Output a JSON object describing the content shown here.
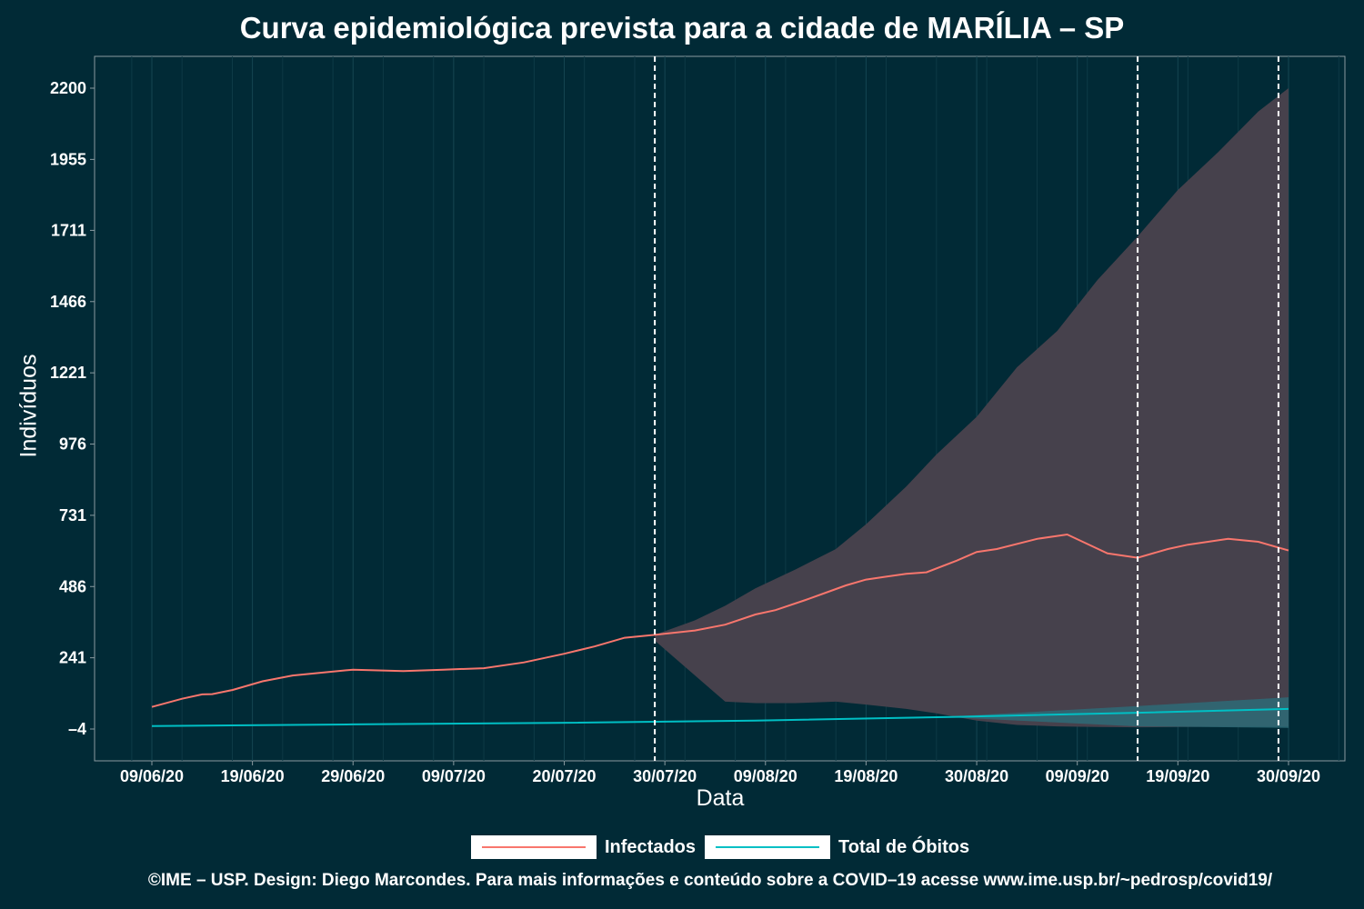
{
  "chart_data": {
    "type": "line",
    "title": "Curva epidemiológica prevista para a cidade de MARÍLIA – SP",
    "xlabel": "Data",
    "ylabel": "Indivíduos",
    "x_range": [
      "2020-06-09",
      "2020-09-30"
    ],
    "ylim": [
      -4,
      2200
    ],
    "x_ticks": [
      "09/06/20",
      "19/06/20",
      "29/06/20",
      "09/07/20",
      "20/07/20",
      "30/07/20",
      "09/08/20",
      "19/08/20",
      "30/08/20",
      "09/09/20",
      "19/09/20",
      "30/09/20"
    ],
    "y_ticks": [
      -4,
      241,
      486,
      731,
      976,
      1221,
      1466,
      1711,
      1955,
      2200
    ],
    "y_tick_labels": [
      "–4",
      "241",
      "486",
      "731",
      "976",
      "1221",
      "1466",
      "1711",
      "1955",
      "2200"
    ],
    "vertical_lines": [
      "2020-07-29",
      "2020-09-15",
      "2020-09-29"
    ],
    "grid": true,
    "legend_position": "bottom",
    "series": [
      {
        "name": "Infectados",
        "color": "#f8766d",
        "x": [
          "2020-06-09",
          "2020-06-12",
          "2020-06-14",
          "2020-06-15",
          "2020-06-17",
          "2020-06-20",
          "2020-06-23",
          "2020-06-26",
          "2020-06-29",
          "2020-07-04",
          "2020-07-08",
          "2020-07-12",
          "2020-07-16",
          "2020-07-20",
          "2020-07-23",
          "2020-07-26",
          "2020-07-29",
          "2020-08-02",
          "2020-08-05",
          "2020-08-08",
          "2020-08-10",
          "2020-08-13",
          "2020-08-15",
          "2020-08-17",
          "2020-08-19",
          "2020-08-21",
          "2020-08-23",
          "2020-08-25",
          "2020-08-28",
          "2020-08-30",
          "2020-09-01",
          "2020-09-05",
          "2020-09-08",
          "2020-09-12",
          "2020-09-15",
          "2020-09-18",
          "2020-09-20",
          "2020-09-24",
          "2020-09-27",
          "2020-09-30"
        ],
        "y": [
          72,
          100,
          115,
          116,
          130,
          160,
          180,
          190,
          200,
          195,
          200,
          205,
          225,
          255,
          280,
          310,
          320,
          335,
          355,
          390,
          405,
          440,
          465,
          490,
          510,
          520,
          530,
          535,
          575,
          605,
          615,
          650,
          665,
          600,
          585,
          615,
          630,
          650,
          640,
          610
        ]
      },
      {
        "name": "Total de Óbitos",
        "color": "#00bfc4",
        "x": [
          "2020-06-09",
          "2020-06-29",
          "2020-07-19",
          "2020-08-08",
          "2020-08-28",
          "2020-09-15",
          "2020-09-30"
        ],
        "y": [
          6,
          12,
          17,
          25,
          38,
          52,
          65
        ]
      }
    ],
    "confidence_bands": [
      {
        "series": "Infectados",
        "x": [
          "2020-07-29",
          "2020-08-02",
          "2020-08-05",
          "2020-08-08",
          "2020-08-12",
          "2020-08-16",
          "2020-08-19",
          "2020-08-23",
          "2020-08-26",
          "2020-08-30",
          "2020-09-03",
          "2020-09-07",
          "2020-09-11",
          "2020-09-15",
          "2020-09-19",
          "2020-09-23",
          "2020-09-27",
          "2020-09-30"
        ],
        "upper": [
          320,
          370,
          420,
          480,
          545,
          615,
          700,
          830,
          940,
          1070,
          1240,
          1365,
          1540,
          1690,
          1850,
          1980,
          2120,
          2200
        ],
        "lower": [
          300,
          180,
          90,
          85,
          85,
          90,
          80,
          65,
          50,
          25,
          10,
          5,
          3,
          2,
          3,
          4,
          4,
          5
        ]
      },
      {
        "series": "Total de Óbitos",
        "x": [
          "2020-08-28",
          "2020-09-15",
          "2020-09-30"
        ],
        "upper": [
          40,
          75,
          105
        ],
        "lower": [
          35,
          5,
          0
        ]
      }
    ]
  },
  "legend": [
    {
      "label": "Infectados",
      "color": "#f8766d"
    },
    {
      "label": "Total de Óbitos",
      "color": "#00bfc4"
    }
  ],
  "footer": "©IME – USP. Design: Diego Marcondes. Para mais informações e conteúdo sobre a COVID–19 acesse www.ime.usp.br/~pedrosp/covid19/"
}
